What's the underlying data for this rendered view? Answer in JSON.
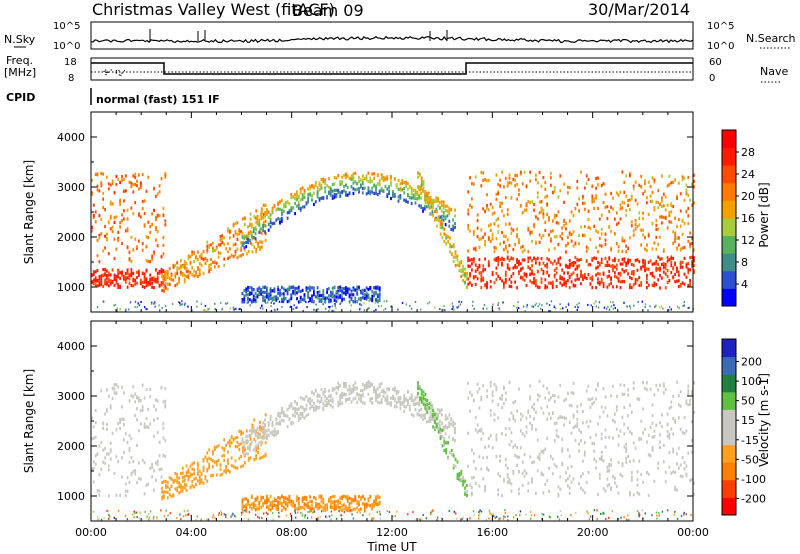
{
  "header": {
    "station": "Christmas Valley West (fitACF)",
    "beam": "Beam 09",
    "date": "30/Mar/2014"
  },
  "params": {
    "nsky_label": "N.Sky",
    "nsky_ticks": [
      "10^5",
      "10^0"
    ],
    "nsearch_label": "N.Search",
    "nsearch_ticks": [
      "10^5",
      "10^0"
    ],
    "freq_label": "Freq.",
    "freq_unit": "[MHz]",
    "freq_ticks": [
      "18",
      "8"
    ],
    "nave_label": "Nave",
    "nave_ticks": [
      "60",
      "0"
    ],
    "cpid_label": "CPID",
    "cpid_value": "normal (fast) 151 IF"
  },
  "colors": {
    "power": [
      "#0000ff",
      "#2a4fd0",
      "#3e8d8a",
      "#58b25c",
      "#a9cc3c",
      "#f2a100",
      "#ff7a00",
      "#ff4a00",
      "#ff1a00"
    ],
    "velocity": [
      "#ff0000",
      "#ff3c00",
      "#ff8000",
      "#ffa020",
      "#c8c8c0",
      "#60c040",
      "#208040",
      "#3a6ab8",
      "#2020c0"
    ],
    "power_swatches": [
      "#0000ff",
      "#2a4fd0",
      "#3e8d8a",
      "#58b25c",
      "#a9cc3c",
      "#f2a100",
      "#ff7a00",
      "#ff4a00",
      "#ff1a00",
      "#ff0000"
    ],
    "velocity_swatches": [
      "#ff0000",
      "#ff3c00",
      "#ff8000",
      "#ffa020",
      "#c8c8c0",
      "#c8c8c0",
      "#60c040",
      "#208040",
      "#3a6ab8",
      "#2020c0"
    ]
  },
  "chart_data": [
    {
      "type": "heatmap",
      "title": "Power",
      "xlabel": "Time UT",
      "ylabel": "Slant Range [km]",
      "xlim": [
        0,
        24
      ],
      "ylim": [
        500,
        4500
      ],
      "x_ticks": [
        "00:00",
        "04:00",
        "08:00",
        "12:00",
        "16:00",
        "20:00",
        "00:00"
      ],
      "y_ticks": [
        "1000",
        "2000",
        "3000",
        "4000"
      ],
      "colorbar_label": "Power [dB]",
      "colorbar_ticks": [
        "4",
        "8",
        "12",
        "16",
        "20",
        "24",
        "28"
      ],
      "colorbar_range": [
        0,
        32
      ],
      "features": [
        {
          "name": "near-range band early",
          "t": [
            0.0,
            3.0
          ],
          "range_km": [
            980,
            1350
          ],
          "value": 30
        },
        {
          "name": "near-range band late",
          "t": [
            15.0,
            24.0
          ],
          "range_km": [
            980,
            1600
          ],
          "value": 30
        },
        {
          "name": "mid-range patches early",
          "t": [
            0.0,
            3.0
          ],
          "range_km": [
            1500,
            3300
          ],
          "value": 24
        },
        {
          "name": "mid-range patches late",
          "t": [
            15.0,
            24.0
          ],
          "range_km": [
            1700,
            3300
          ],
          "value": 22
        },
        {
          "name": "rising trace",
          "t": [
            2.8,
            7.0
          ],
          "range_km": [
            900,
            2600
          ],
          "value": 22
        },
        {
          "name": "skip-edge arc",
          "t": [
            6.0,
            14.5
          ],
          "range_km": [
            1800,
            3200
          ],
          "value": 16
        },
        {
          "name": "low band",
          "t": [
            6.0,
            11.5
          ],
          "range_km": [
            700,
            1000
          ],
          "value": 6
        },
        {
          "name": "descending trace",
          "t": [
            13.0,
            15.0
          ],
          "range_km": [
            900,
            3200
          ],
          "value": 18
        }
      ]
    },
    {
      "type": "heatmap",
      "title": "Velocity",
      "xlabel": "Time UT",
      "ylabel": "Slant Range [km]",
      "xlim": [
        0,
        24
      ],
      "ylim": [
        500,
        4500
      ],
      "x_ticks": [
        "00:00",
        "04:00",
        "08:00",
        "12:00",
        "16:00",
        "20:00",
        "00:00"
      ],
      "y_ticks": [
        "1000",
        "2000",
        "3000",
        "4000"
      ],
      "colorbar_label": "Velocity [m s-1]",
      "colorbar_ticks": [
        "200",
        "100",
        "50",
        "15",
        "-15",
        "-50",
        "-100",
        "-200"
      ],
      "colorbar_range": [
        -250,
        250
      ],
      "features": [
        {
          "name": "ground scatter early",
          "t": [
            0.0,
            3.0
          ],
          "range_km": [
            1000,
            3300
          ],
          "value": 0
        },
        {
          "name": "ground scatter late",
          "t": [
            15.0,
            24.0
          ],
          "range_km": [
            1000,
            3300
          ],
          "value": 0
        },
        {
          "name": "rising trace",
          "t": [
            2.8,
            7.0
          ],
          "range_km": [
            900,
            2600
          ],
          "value": -60
        },
        {
          "name": "skip-edge arc",
          "t": [
            6.0,
            14.5
          ],
          "range_km": [
            1800,
            3200
          ],
          "value": 0
        },
        {
          "name": "low band",
          "t": [
            6.0,
            11.5
          ],
          "range_km": [
            700,
            1000
          ],
          "value": -80
        },
        {
          "name": "descending trace",
          "t": [
            13.0,
            15.0
          ],
          "range_km": [
            900,
            3200
          ],
          "value": 40
        }
      ]
    }
  ]
}
